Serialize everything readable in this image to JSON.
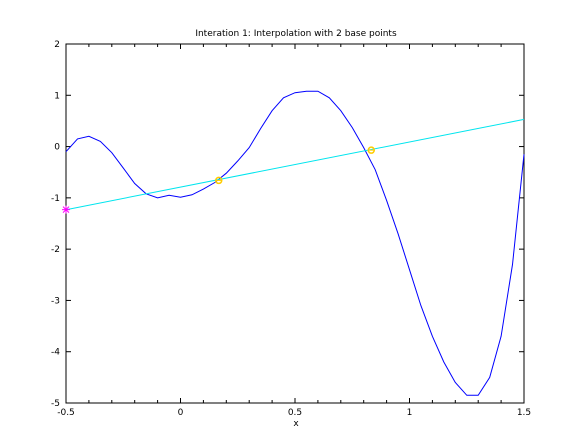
{
  "chart_data": {
    "type": "line",
    "title": "Interation 1: Interpolation with 2 base points",
    "xlabel": "x",
    "ylabel": "",
    "xlim": [
      -0.5,
      1.5
    ],
    "ylim": [
      -5,
      2
    ],
    "grid": false,
    "x_ticks": [
      -0.5,
      0,
      0.5,
      1,
      1.5
    ],
    "x_tick_labels": [
      "-0.5",
      "0",
      "0.5",
      "1",
      "1.5"
    ],
    "y_ticks": [
      2,
      1,
      0,
      -1,
      -2,
      -3,
      -4,
      -5
    ],
    "y_tick_labels": [
      "2",
      "1",
      "0",
      "-1",
      "-2",
      "-3",
      "-4",
      "-5"
    ],
    "series": [
      {
        "type": "line",
        "color": "#0000ff",
        "x": [
          -0.5,
          -0.45,
          -0.4,
          -0.35,
          -0.3,
          -0.25,
          -0.2,
          -0.15,
          -0.1,
          -0.05,
          0.0,
          0.05,
          0.1,
          0.15,
          0.2,
          0.25,
          0.3,
          0.35,
          0.4,
          0.45,
          0.5,
          0.55,
          0.6,
          0.65,
          0.7,
          0.75,
          0.8,
          0.85,
          0.9,
          0.95,
          1.0,
          1.05,
          1.1,
          1.15,
          1.2,
          1.25,
          1.3,
          1.35,
          1.4,
          1.45,
          1.5
        ],
        "y": [
          -0.1,
          0.15,
          0.2,
          0.1,
          -0.12,
          -0.42,
          -0.72,
          -0.92,
          -1.0,
          -0.95,
          -0.99,
          -0.94,
          -0.83,
          -0.7,
          -0.52,
          -0.28,
          -0.02,
          0.35,
          0.7,
          0.95,
          1.05,
          1.08,
          1.08,
          0.95,
          0.7,
          0.37,
          -0.02,
          -0.45,
          -1.05,
          -1.7,
          -2.4,
          -3.1,
          -3.7,
          -4.2,
          -4.6,
          -4.85,
          -4.85,
          -4.5,
          -3.7,
          -2.3,
          -0.15
        ]
      },
      {
        "type": "line",
        "color": "#00e5ee",
        "x": [
          -0.5,
          1.5
        ],
        "y": [
          -1.23,
          0.53
        ]
      }
    ],
    "markers": [
      {
        "x": -0.5,
        "y": -1.23,
        "color": "#ff00ff",
        "shape": "star"
      },
      {
        "x": 0.167,
        "y": -0.66,
        "color": "#ffcc00",
        "shape": "circle"
      },
      {
        "x": 0.833,
        "y": -0.07,
        "color": "#ffcc00",
        "shape": "circle"
      }
    ]
  }
}
